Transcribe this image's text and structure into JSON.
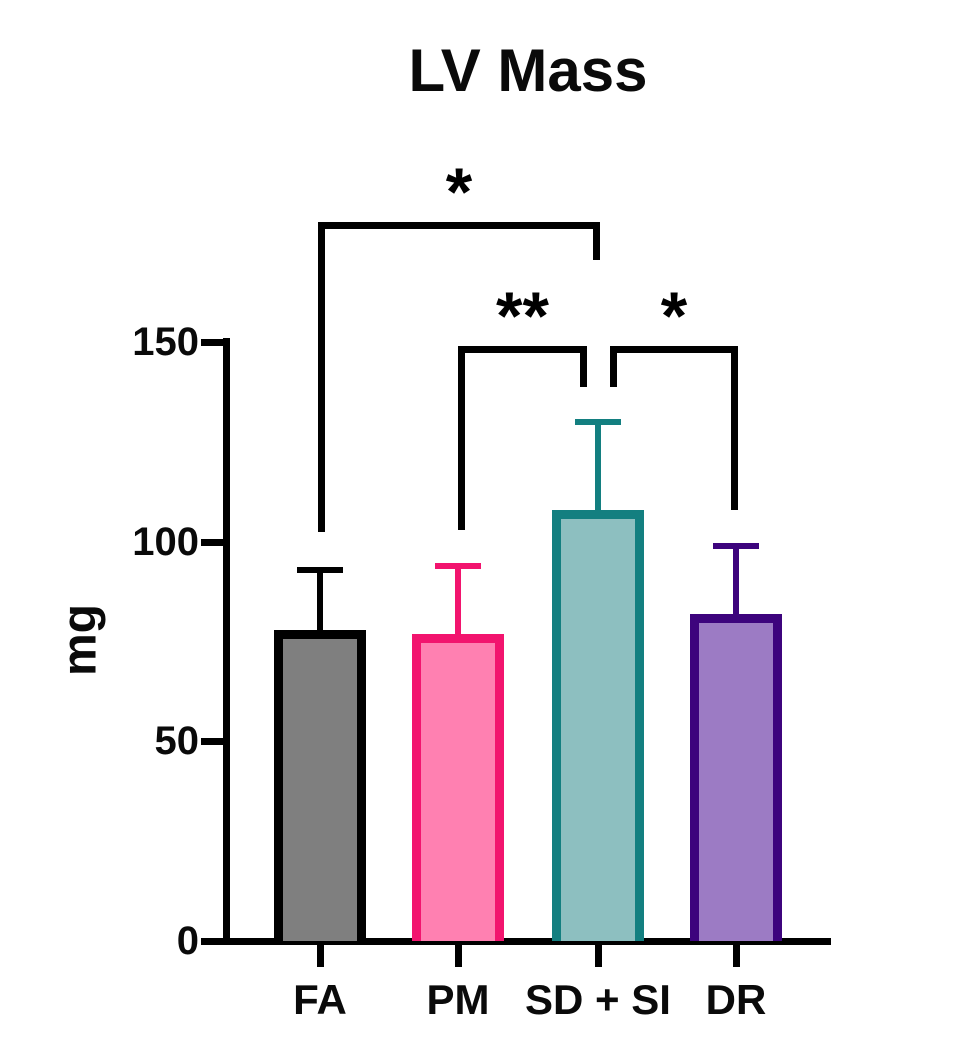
{
  "chart_data": {
    "type": "bar",
    "title": "LV Mass",
    "ylabel": "mg",
    "xlabel": "",
    "categories": [
      "FA",
      "PM",
      "SD + SI",
      "DR"
    ],
    "values": [
      78,
      77,
      108,
      82
    ],
    "errors_plus": [
      15,
      17,
      22,
      17
    ],
    "error_tops": [
      93,
      94,
      130,
      99
    ],
    "ylim": [
      0,
      150
    ],
    "yticks": [
      0,
      50,
      100,
      150
    ],
    "grid": false,
    "legend": "none",
    "bar_styles": [
      {
        "category": "FA",
        "fill": "#7F7F7F",
        "border": "#000000"
      },
      {
        "category": "PM",
        "fill": "#FF80B1",
        "border": "#F2146E"
      },
      {
        "category": "SD + SI",
        "fill": "#8DBFC0",
        "border": "#137F80"
      },
      {
        "category": "DR",
        "fill": "#9C7BC4",
        "border": "#3D047D"
      }
    ],
    "significance": [
      {
        "between": [
          "FA",
          "SD + SI"
        ],
        "label": "*"
      },
      {
        "between": [
          "PM",
          "SD + SI"
        ],
        "label": "**"
      },
      {
        "between": [
          "SD + SI",
          "DR"
        ],
        "label": "*"
      }
    ]
  }
}
